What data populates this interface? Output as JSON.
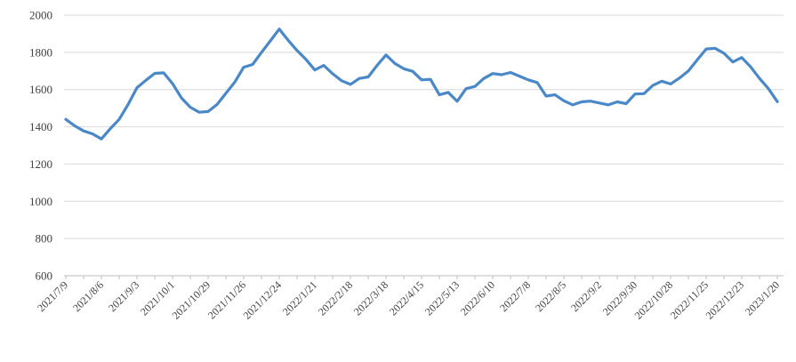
{
  "chart_data": {
    "type": "line",
    "title": "",
    "legend": false,
    "grid": true,
    "series_name": "",
    "x": [
      "2021/7/9",
      "2021/7/16",
      "2021/7/23",
      "2021/7/30",
      "2021/8/6",
      "2021/8/13",
      "2021/8/20",
      "2021/8/27",
      "2021/9/3",
      "2021/9/10",
      "2021/9/17",
      "2021/9/24",
      "2021/10/1",
      "2021/10/8",
      "2021/10/15",
      "2021/10/22",
      "2021/10/29",
      "2021/11/5",
      "2021/11/12",
      "2021/11/19",
      "2021/11/26",
      "2021/12/3",
      "2021/12/10",
      "2021/12/17",
      "2021/12/24",
      "2021/12/31",
      "2022/1/7",
      "2022/1/14",
      "2022/1/21",
      "2022/1/28",
      "2022/2/4",
      "2022/2/11",
      "2022/2/18",
      "2022/2/25",
      "2022/3/4",
      "2022/3/11",
      "2022/3/18",
      "2022/3/25",
      "2022/4/1",
      "2022/4/8",
      "2022/4/15",
      "2022/4/22",
      "2022/4/29",
      "2022/5/6",
      "2022/5/13",
      "2022/5/20",
      "2022/5/27",
      "2022/6/3",
      "2022/6/10",
      "2022/6/17",
      "2022/6/24",
      "2022/7/1",
      "2022/7/8",
      "2022/7/15",
      "2022/7/22",
      "2022/7/29",
      "2022/8/5",
      "2022/8/12",
      "2022/8/19",
      "2022/8/26",
      "2022/9/2",
      "2022/9/9",
      "2022/9/16",
      "2022/9/23",
      "2022/9/30",
      "2022/10/7",
      "2022/10/14",
      "2022/10/21",
      "2022/10/28",
      "2022/11/4",
      "2022/11/11",
      "2022/11/18",
      "2022/11/25",
      "2022/12/2",
      "2022/12/9",
      "2022/12/16",
      "2022/12/23",
      "2022/12/30",
      "2023/1/6",
      "2023/1/13",
      "2023/1/20"
    ],
    "values": [
      1440,
      1405,
      1378,
      1362,
      1335,
      1390,
      1440,
      1520,
      1610,
      1650,
      1687,
      1690,
      1632,
      1555,
      1505,
      1478,
      1482,
      1520,
      1580,
      1640,
      1720,
      1735,
      1800,
      1862,
      1925,
      1865,
      1810,
      1762,
      1705,
      1730,
      1685,
      1648,
      1628,
      1660,
      1668,
      1730,
      1786,
      1740,
      1712,
      1698,
      1652,
      1655,
      1572,
      1585,
      1537,
      1605,
      1617,
      1660,
      1686,
      1680,
      1692,
      1672,
      1652,
      1638,
      1565,
      1572,
      1540,
      1518,
      1534,
      1538,
      1528,
      1518,
      1534,
      1524,
      1576,
      1578,
      1622,
      1645,
      1630,
      1662,
      1700,
      1760,
      1818,
      1822,
      1795,
      1748,
      1772,
      1722,
      1660,
      1605,
      1535
    ],
    "x_axis": {
      "label_every_n_points": 4,
      "minor_tick_every_n_points": 2,
      "labels_shown": [
        "2021/7/9",
        "2021/8/6",
        "2021/9/3",
        "2021/10/1",
        "2021/10/29",
        "2021/11/26",
        "2021/12/24",
        "2022/1/21",
        "2022/2/18",
        "2022/3/18",
        "2022/4/15",
        "2022/5/13",
        "2022/6/10",
        "2022/7/8",
        "2022/8/5",
        "2022/9/2",
        "2022/9/30",
        "2022/10/28",
        "2022/11/25",
        "2022/12/23",
        "2023/1/20"
      ],
      "label_rotation_deg": 45
    },
    "y_axis": {
      "min": 600,
      "max": 2000,
      "step": 200,
      "ticks": [
        2000,
        1800,
        1600,
        1400,
        1200,
        1000,
        800,
        600
      ]
    },
    "colors": {
      "line": "#4a88c8",
      "gridline": "#d9d9d9",
      "axis": "#bfbfbf",
      "label_text": "#404040",
      "background": "#ffffff"
    }
  }
}
